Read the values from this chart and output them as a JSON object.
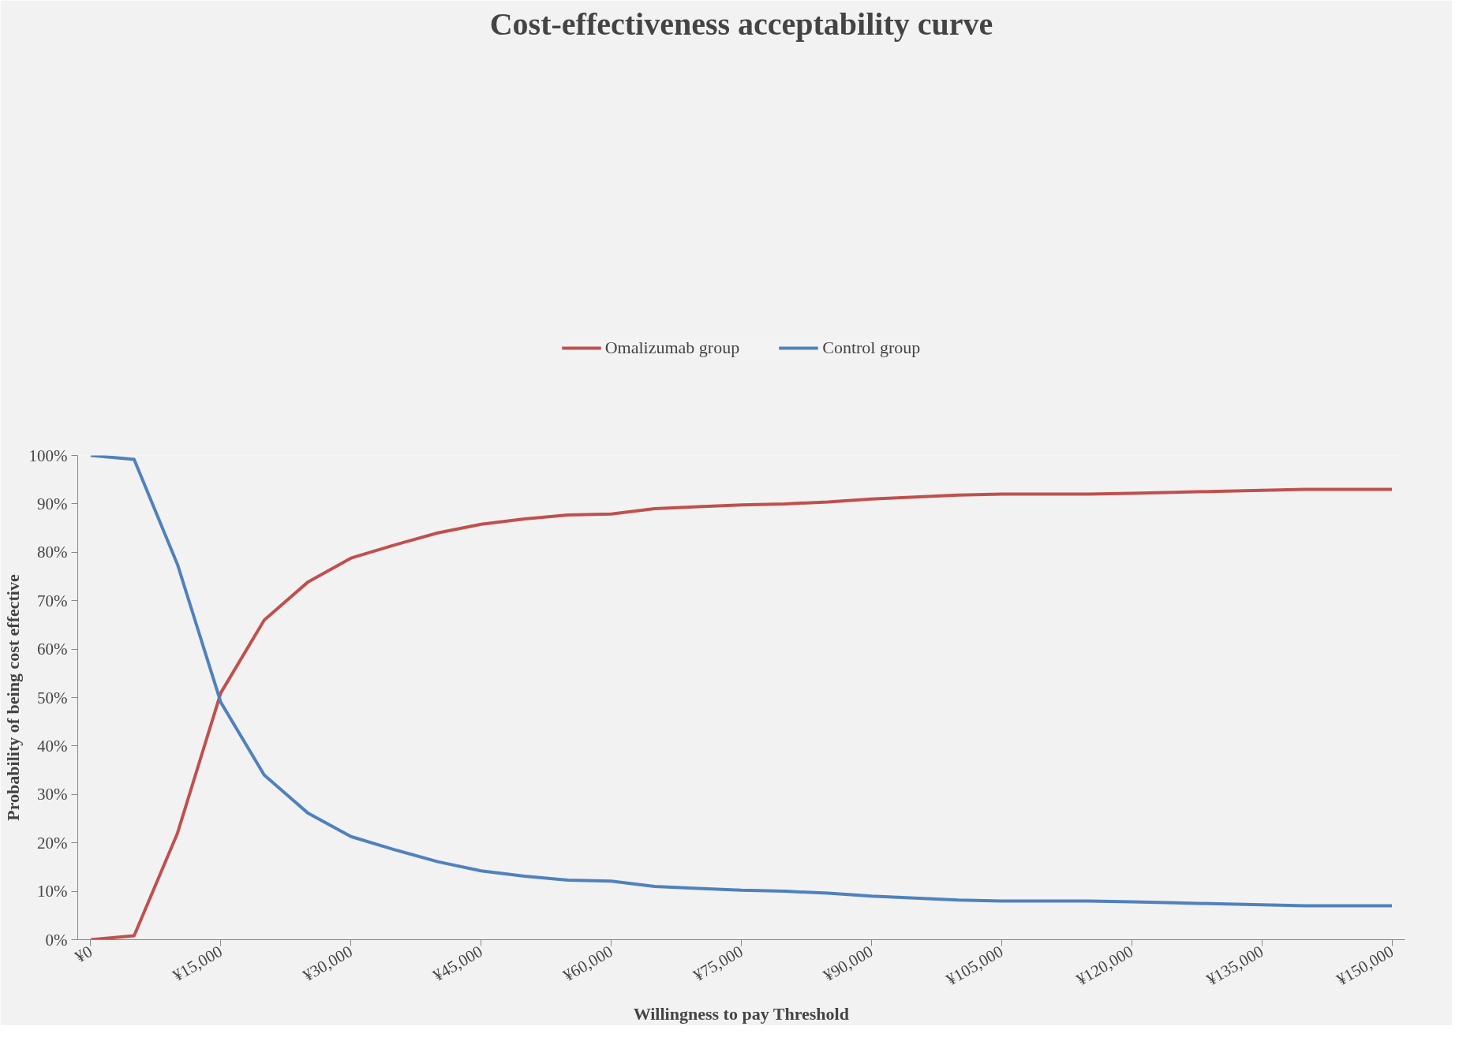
{
  "chart_data": {
    "type": "line",
    "title": "Cost-effectiveness acceptability curve",
    "xlabel": "Willingness to pay Threshold",
    "ylabel": "Probability of being cost effective",
    "categories": [
      "¥0",
      null,
      null,
      "¥15,000",
      null,
      null,
      "¥30,000",
      null,
      null,
      "¥45,000",
      null,
      null,
      "¥60,000",
      null,
      null,
      "¥75,000",
      null,
      null,
      "¥90,000",
      null,
      null,
      "¥105,000",
      null,
      null,
      "¥120,000",
      null,
      null,
      "¥135,000",
      null,
      null,
      "¥150,000"
    ],
    "series": [
      {
        "name": "Omalizumab group",
        "color": "#c0504d",
        "values": [
          0,
          0.8,
          22,
          51,
          66,
          73.8,
          78.8,
          81.5,
          84,
          85.8,
          86.9,
          87.7,
          87.9,
          89,
          89.4,
          89.8,
          90,
          90.4,
          91,
          91.4,
          91.8,
          92,
          92,
          92,
          92.2,
          92.4,
          92.6,
          92.8,
          93,
          93,
          93
        ]
      },
      {
        "name": "Control group",
        "color": "#4f81bd",
        "values": [
          100,
          99.2,
          77.5,
          49,
          34,
          26.2,
          21.3,
          18.6,
          16.1,
          14.2,
          13.1,
          12.3,
          12.1,
          11,
          10.6,
          10.2,
          10,
          9.6,
          9,
          8.6,
          8.2,
          8,
          8,
          8,
          7.8,
          7.6,
          7.4,
          7.2,
          7,
          7,
          7
        ]
      }
    ],
    "ylim": [
      0,
      100
    ],
    "yticks": [
      {
        "value": 0,
        "label": "0%"
      },
      {
        "value": 10,
        "label": "10%"
      },
      {
        "value": 20,
        "label": "20%"
      },
      {
        "value": 30,
        "label": "30%"
      },
      {
        "value": 40,
        "label": "40%"
      },
      {
        "value": 50,
        "label": "50%"
      },
      {
        "value": 60,
        "label": "60%"
      },
      {
        "value": 70,
        "label": "70%"
      },
      {
        "value": 80,
        "label": "80%"
      },
      {
        "value": 90,
        "label": "90%"
      },
      {
        "value": 100,
        "label": "100%"
      }
    ],
    "legend": "top",
    "grid": false,
    "marker": "none",
    "line_style": "solid"
  }
}
